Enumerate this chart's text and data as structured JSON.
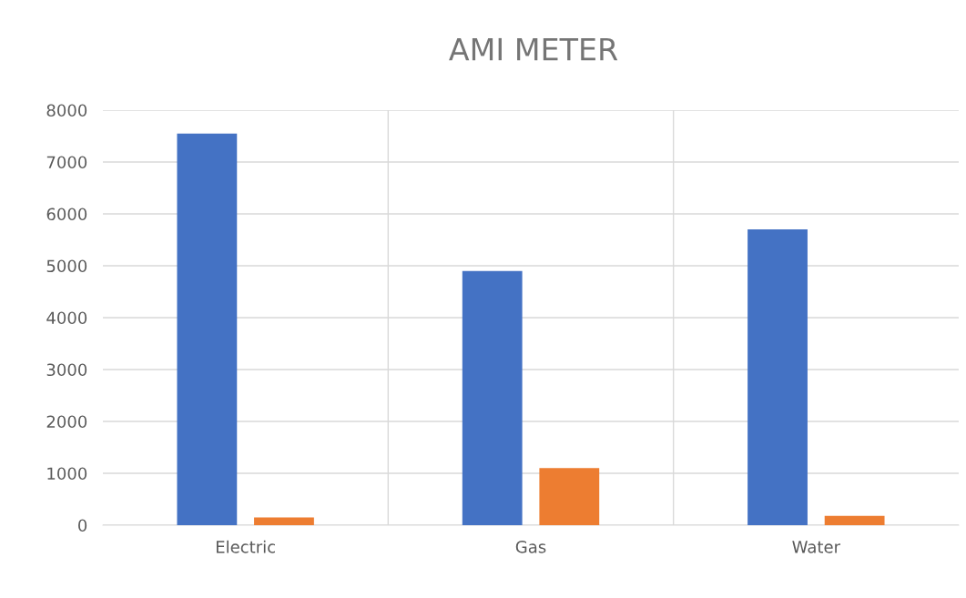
{
  "chart_data": {
    "type": "bar",
    "title": "AMI METER",
    "categories": [
      "Electric",
      "Gas",
      "Water"
    ],
    "series": [
      {
        "color": "#4472c4",
        "values": [
          7550,
          4900,
          5700
        ]
      },
      {
        "color": "#ed7d31",
        "values": [
          150,
          1100,
          180
        ]
      }
    ],
    "ylim": [
      0,
      8000
    ],
    "yticks": [
      0,
      1000,
      2000,
      3000,
      4000,
      5000,
      6000,
      7000,
      8000
    ],
    "grid": true
  }
}
